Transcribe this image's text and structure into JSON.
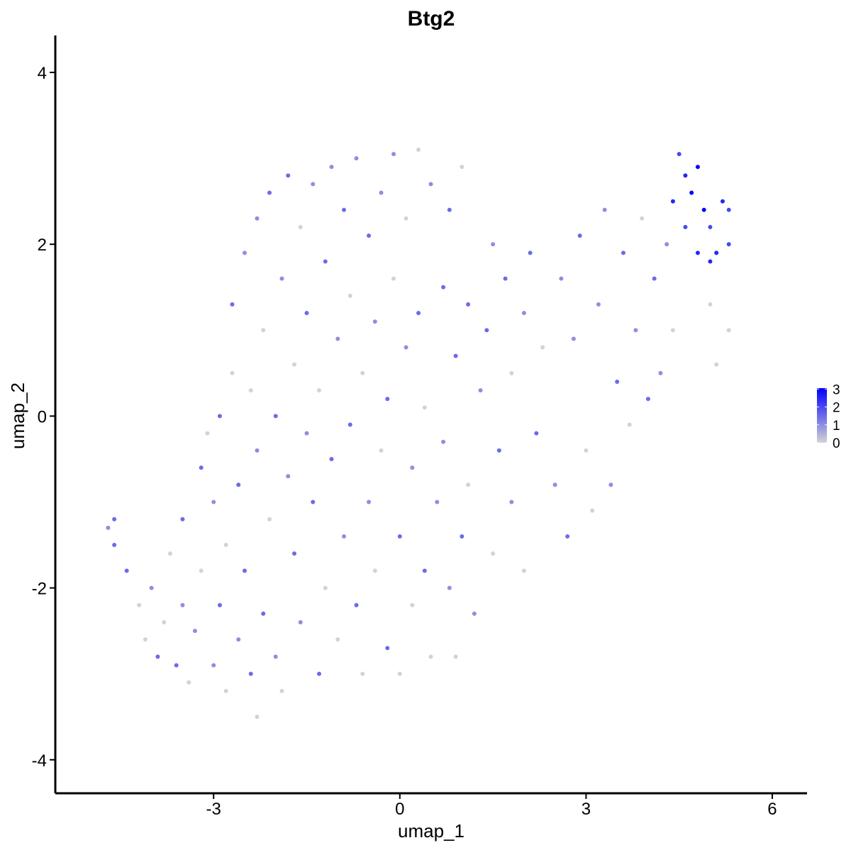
{
  "chart_data": {
    "type": "scatter",
    "title": "Btg2",
    "x_label": "umap_1",
    "y_label": "umap_2",
    "xlim": [
      -5.55,
      6.56
    ],
    "ylim": [
      -4.39,
      4.43
    ],
    "xticks": [
      -3,
      0,
      3,
      6
    ],
    "yticks": [
      -4,
      -2,
      0,
      2,
      4
    ],
    "grid": false,
    "color_low": "#d3d3d3",
    "color_high": "#0000ff",
    "colorlim": [
      0,
      3.05
    ],
    "colorbar_ticks": [
      0,
      1,
      2,
      3
    ],
    "x": [
      -4.7,
      -4.6,
      -4.6,
      -4.4,
      -4.2,
      -4.1,
      -4.0,
      -3.9,
      -3.8,
      -3.7,
      -3.6,
      -3.5,
      -3.5,
      -3.4,
      -3.3,
      -3.2,
      -3.2,
      -3.1,
      -3.0,
      -3.0,
      -2.9,
      -2.9,
      -2.8,
      -2.8,
      -2.7,
      -2.7,
      -2.6,
      -2.6,
      -2.5,
      -2.5,
      -2.4,
      -2.4,
      -2.3,
      -2.3,
      -2.3,
      -2.2,
      -2.2,
      -2.1,
      -2.1,
      -2.0,
      -2.0,
      -1.9,
      -1.9,
      -1.8,
      -1.8,
      -1.7,
      -1.7,
      -1.6,
      -1.6,
      -1.5,
      -1.5,
      -1.4,
      -1.4,
      -1.3,
      -1.3,
      -1.2,
      -1.2,
      -1.1,
      -1.1,
      -1.0,
      -1.0,
      -0.9,
      -0.9,
      -0.8,
      -0.8,
      -0.7,
      -0.7,
      -0.6,
      -0.6,
      -0.5,
      -0.5,
      -0.4,
      -0.4,
      -0.3,
      -0.3,
      -0.2,
      -0.2,
      -0.1,
      -0.1,
      0.0,
      0.0,
      0.1,
      0.1,
      0.2,
      0.2,
      0.3,
      0.3,
      0.4,
      0.4,
      0.5,
      0.5,
      0.6,
      0.7,
      0.7,
      0.8,
      0.8,
      0.9,
      0.9,
      1.0,
      1.0,
      1.1,
      1.1,
      1.2,
      1.3,
      1.4,
      1.5,
      1.5,
      1.6,
      1.7,
      1.8,
      1.8,
      2.0,
      2.0,
      2.1,
      2.2,
      2.3,
      2.5,
      2.6,
      2.7,
      2.8,
      2.9,
      3.0,
      3.1,
      3.2,
      3.3,
      3.4,
      3.5,
      3.6,
      3.7,
      3.8,
      3.9,
      4.0,
      4.1,
      4.2,
      4.3,
      4.4,
      4.4,
      4.5,
      4.6,
      4.6,
      4.7,
      4.8,
      4.9,
      5.0,
      5.0,
      5.1,
      5.1,
      5.2,
      5.3,
      5.3,
      5.3,
      4.8,
      5.0
    ],
    "y": [
      -1.3,
      -1.2,
      -1.5,
      -1.8,
      -2.2,
      -2.6,
      -2.0,
      -2.8,
      -2.4,
      -1.6,
      -2.9,
      -2.2,
      -1.2,
      -3.1,
      -2.5,
      -0.6,
      -1.8,
      -0.2,
      -2.9,
      -1.0,
      0.0,
      -2.2,
      -3.2,
      -1.5,
      0.5,
      1.3,
      -0.8,
      -2.6,
      1.9,
      -1.8,
      0.3,
      -3.0,
      2.3,
      -0.4,
      -3.5,
      1.0,
      -2.3,
      2.6,
      -1.2,
      0.0,
      -2.8,
      1.6,
      -3.2,
      2.8,
      -0.7,
      0.6,
      -1.6,
      2.2,
      -2.4,
      1.2,
      -0.2,
      2.7,
      -1.0,
      -3.0,
      0.3,
      1.8,
      -2.0,
      2.9,
      -0.5,
      0.9,
      -2.6,
      2.4,
      -1.4,
      1.4,
      -0.1,
      3.0,
      -2.2,
      0.5,
      -3.0,
      2.1,
      -1.0,
      1.1,
      -1.8,
      2.6,
      -0.4,
      -2.7,
      0.2,
      1.6,
      3.05,
      -1.4,
      -3.0,
      0.8,
      2.3,
      -0.6,
      -2.2,
      3.1,
      1.2,
      -1.8,
      0.1,
      2.7,
      -2.8,
      -1.0,
      1.5,
      -0.3,
      2.4,
      -2.0,
      0.7,
      -2.8,
      -1.4,
      2.9,
      1.3,
      -0.8,
      -2.3,
      0.3,
      1.0,
      -1.6,
      2.0,
      -0.4,
      1.6,
      -1.0,
      0.5,
      1.2,
      -1.8,
      1.9,
      -0.2,
      0.8,
      -0.8,
      1.6,
      -1.4,
      0.9,
      2.1,
      -0.4,
      -1.1,
      1.3,
      2.4,
      -0.8,
      0.4,
      1.9,
      -0.1,
      1.0,
      2.3,
      0.2,
      1.6,
      0.5,
      2.0,
      1.0,
      2.5,
      3.05,
      2.8,
      2.2,
      2.6,
      1.9,
      2.4,
      1.8,
      2.2,
      0.6,
      1.9,
      2.5,
      2.0,
      2.4,
      1.0,
      2.9,
      1.3
    ],
    "values": [
      1,
      1.5,
      1.5,
      1.5,
      0,
      0,
      1,
      1.5,
      0,
      0,
      1.5,
      1,
      1.5,
      0,
      1,
      1.5,
      0,
      0,
      1,
      1,
      1.5,
      1.5,
      0,
      0,
      0,
      1.5,
      1.5,
      1,
      1,
      1.5,
      0,
      1.5,
      1,
      1,
      0,
      0,
      1.5,
      1.5,
      0,
      1.5,
      1,
      1,
      0,
      1.5,
      1,
      0,
      1.5,
      0,
      1,
      1.5,
      1,
      1,
      1.5,
      1.5,
      0,
      1.5,
      0,
      1,
      1.5,
      1,
      0,
      1.5,
      1,
      0,
      1.5,
      1,
      1.5,
      0,
      0,
      1.5,
      1,
      1,
      0,
      1,
      0,
      1.5,
      1.5,
      0,
      1,
      1.5,
      0,
      1,
      0,
      1,
      0,
      0,
      1.5,
      1.5,
      0,
      1,
      0,
      1,
      1.5,
      1,
      1.5,
      1,
      1.5,
      0,
      1.5,
      0,
      1.5,
      0,
      1,
      1,
      1.5,
      0,
      1,
      1.5,
      1.5,
      1,
      0,
      1,
      0,
      1.5,
      1.5,
      0,
      1,
      1,
      1.5,
      1,
      1.5,
      0,
      0,
      1,
      1,
      1,
      1.5,
      1.5,
      0,
      1,
      0,
      1.5,
      1.5,
      1,
      1,
      0,
      2.5,
      2,
      2.5,
      2,
      3,
      2.5,
      3,
      2.5,
      2,
      0,
      2.5,
      2.5,
      2,
      2,
      0,
      3,
      0
    ]
  }
}
